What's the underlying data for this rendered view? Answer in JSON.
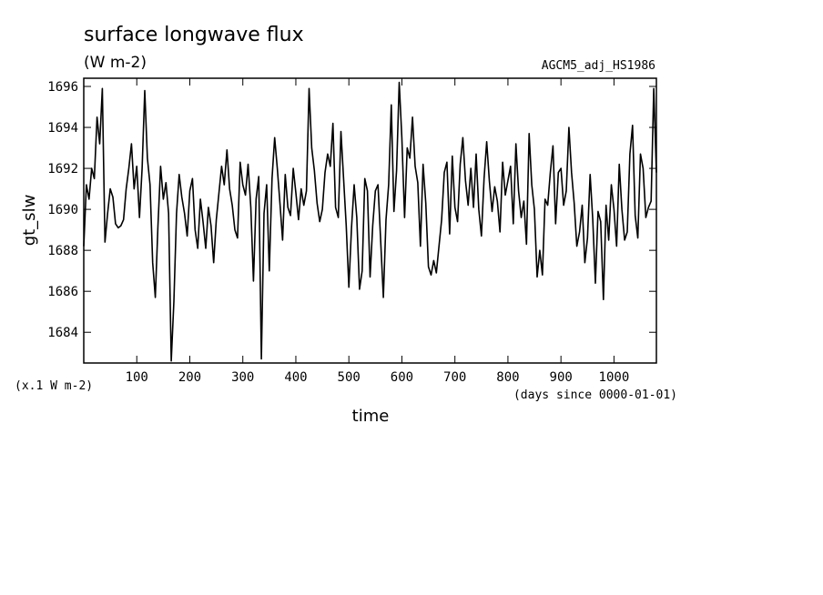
{
  "chart_data": {
    "type": "line",
    "title": "surface longwave flux",
    "subtitle": "(W m-2)",
    "source_label": "AGCM5_adj_HS1986",
    "ylabel": "gt_slw",
    "y_unit_note": "(x.1 W m-2)",
    "xlabel": "time",
    "x_unit_note": "(days since 0000-01-01)",
    "xlim": [
      0,
      1080
    ],
    "ylim": [
      1682.5,
      1696.4
    ],
    "x_ticks": [
      100,
      200,
      300,
      400,
      500,
      600,
      700,
      800,
      900,
      1000
    ],
    "y_ticks": [
      1684,
      1686,
      1688,
      1690,
      1692,
      1694,
      1696
    ],
    "grid": false,
    "series": [
      {
        "color": "#000000",
        "x": [
          0,
          5,
          10,
          15,
          20,
          25,
          30,
          35,
          40,
          45,
          50,
          55,
          60,
          65,
          70,
          75,
          80,
          85,
          90,
          95,
          100,
          105,
          110,
          115,
          120,
          125,
          130,
          135,
          140,
          145,
          150,
          155,
          160,
          165,
          170,
          175,
          180,
          185,
          190,
          195,
          200,
          205,
          210,
          215,
          220,
          225,
          230,
          235,
          240,
          245,
          250,
          255,
          260,
          265,
          270,
          275,
          280,
          285,
          290,
          295,
          300,
          305,
          310,
          315,
          320,
          325,
          330,
          335,
          340,
          345,
          350,
          355,
          360,
          365,
          370,
          375,
          380,
          385,
          390,
          395,
          400,
          405,
          410,
          415,
          420,
          425,
          430,
          435,
          440,
          445,
          450,
          455,
          460,
          465,
          470,
          475,
          480,
          485,
          490,
          495,
          500,
          505,
          510,
          515,
          520,
          525,
          530,
          535,
          540,
          545,
          550,
          555,
          560,
          565,
          570,
          575,
          580,
          585,
          590,
          595,
          600,
          605,
          610,
          615,
          620,
          625,
          630,
          635,
          640,
          645,
          650,
          655,
          660,
          665,
          670,
          675,
          680,
          685,
          690,
          695,
          700,
          705,
          710,
          715,
          720,
          725,
          730,
          735,
          740,
          745,
          750,
          755,
          760,
          765,
          770,
          775,
          780,
          785,
          790,
          795,
          800,
          805,
          810,
          815,
          820,
          825,
          830,
          835,
          840,
          845,
          850,
          855,
          860,
          865,
          870,
          875,
          880,
          885,
          890,
          895,
          900,
          905,
          910,
          915,
          920,
          925,
          930,
          935,
          940,
          945,
          950,
          955,
          960,
          965,
          970,
          975,
          980,
          985,
          990,
          995,
          1000,
          1005,
          1010,
          1015,
          1020,
          1025,
          1030,
          1035,
          1040,
          1045,
          1050,
          1055,
          1060,
          1065,
          1070,
          1075,
          1080
        ],
        "values": [
          1688.2,
          1691.2,
          1690.5,
          1692.0,
          1691.5,
          1694.5,
          1693.2,
          1695.9,
          1688.4,
          1689.8,
          1691.0,
          1690.6,
          1689.3,
          1689.1,
          1689.2,
          1689.5,
          1691.0,
          1692.0,
          1693.2,
          1691.0,
          1692.1,
          1689.6,
          1692.0,
          1695.8,
          1692.5,
          1691.2,
          1687.4,
          1685.7,
          1689.2,
          1692.1,
          1690.5,
          1691.3,
          1689.8,
          1682.6,
          1685.5,
          1689.8,
          1691.7,
          1690.6,
          1689.8,
          1688.7,
          1690.9,
          1691.5,
          1689.0,
          1688.1,
          1690.5,
          1689.4,
          1688.1,
          1690.1,
          1689.2,
          1687.4,
          1689.5,
          1690.8,
          1692.1,
          1691.2,
          1692.9,
          1691.0,
          1690.2,
          1689.0,
          1688.6,
          1692.3,
          1691.2,
          1690.7,
          1692.2,
          1690.1,
          1686.5,
          1690.5,
          1691.6,
          1682.7,
          1689.8,
          1691.2,
          1687.0,
          1691.5,
          1693.5,
          1692.0,
          1690.3,
          1688.5,
          1691.7,
          1690.1,
          1689.7,
          1692.0,
          1690.8,
          1689.5,
          1691.0,
          1690.2,
          1690.9,
          1695.9,
          1693.0,
          1691.9,
          1690.3,
          1689.4,
          1690.0,
          1691.8,
          1692.7,
          1692.1,
          1694.2,
          1690.1,
          1689.6,
          1693.8,
          1691.5,
          1689.2,
          1686.2,
          1689.1,
          1691.2,
          1689.6,
          1686.1,
          1687.0,
          1691.5,
          1690.9,
          1686.7,
          1689.2,
          1690.9,
          1691.2,
          1688.5,
          1685.7,
          1689.5,
          1691.2,
          1695.1,
          1689.9,
          1691.9,
          1696.2,
          1693.5,
          1689.6,
          1693.0,
          1692.5,
          1694.5,
          1692.1,
          1691.3,
          1688.2,
          1692.2,
          1690.3,
          1687.2,
          1686.8,
          1687.5,
          1686.9,
          1688.2,
          1689.5,
          1691.8,
          1692.3,
          1688.8,
          1692.6,
          1690.1,
          1689.4,
          1692.2,
          1693.5,
          1691.4,
          1690.2,
          1692.0,
          1690.1,
          1692.7,
          1690.0,
          1688.7,
          1691.5,
          1693.3,
          1691.4,
          1689.9,
          1691.1,
          1690.4,
          1688.9,
          1692.3,
          1690.7,
          1691.4,
          1692.1,
          1689.3,
          1693.2,
          1690.9,
          1689.6,
          1690.4,
          1688.3,
          1693.7,
          1691.2,
          1690.0,
          1686.7,
          1688.0,
          1686.8,
          1690.5,
          1690.2,
          1691.8,
          1693.1,
          1689.3,
          1691.8,
          1692.0,
          1690.2,
          1690.9,
          1694.0,
          1691.8,
          1690.3,
          1688.2,
          1688.9,
          1690.2,
          1687.4,
          1688.6,
          1691.7,
          1689.5,
          1686.4,
          1689.9,
          1689.4,
          1685.6,
          1690.2,
          1688.5,
          1691.2,
          1690.0,
          1688.2,
          1692.2,
          1690.0,
          1688.5,
          1688.9,
          1692.7,
          1694.1,
          1689.7,
          1688.6,
          1692.7,
          1692.0,
          1689.6,
          1690.1,
          1690.4,
          1695.9,
          1691.8
        ]
      }
    ]
  }
}
